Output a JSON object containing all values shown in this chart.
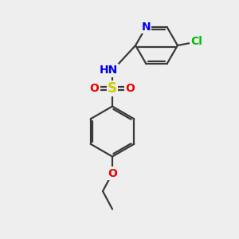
{
  "background_color": "#eeeeee",
  "atom_colors": {
    "C": "#3a3a3a",
    "N": "#0000ee",
    "O": "#ee0000",
    "S": "#cccc00",
    "Cl": "#00bb00",
    "H": "#888888"
  },
  "bond_color": "#3a3a3a",
  "bond_width": 1.6,
  "font_size": 10,
  "font_size_small": 9
}
